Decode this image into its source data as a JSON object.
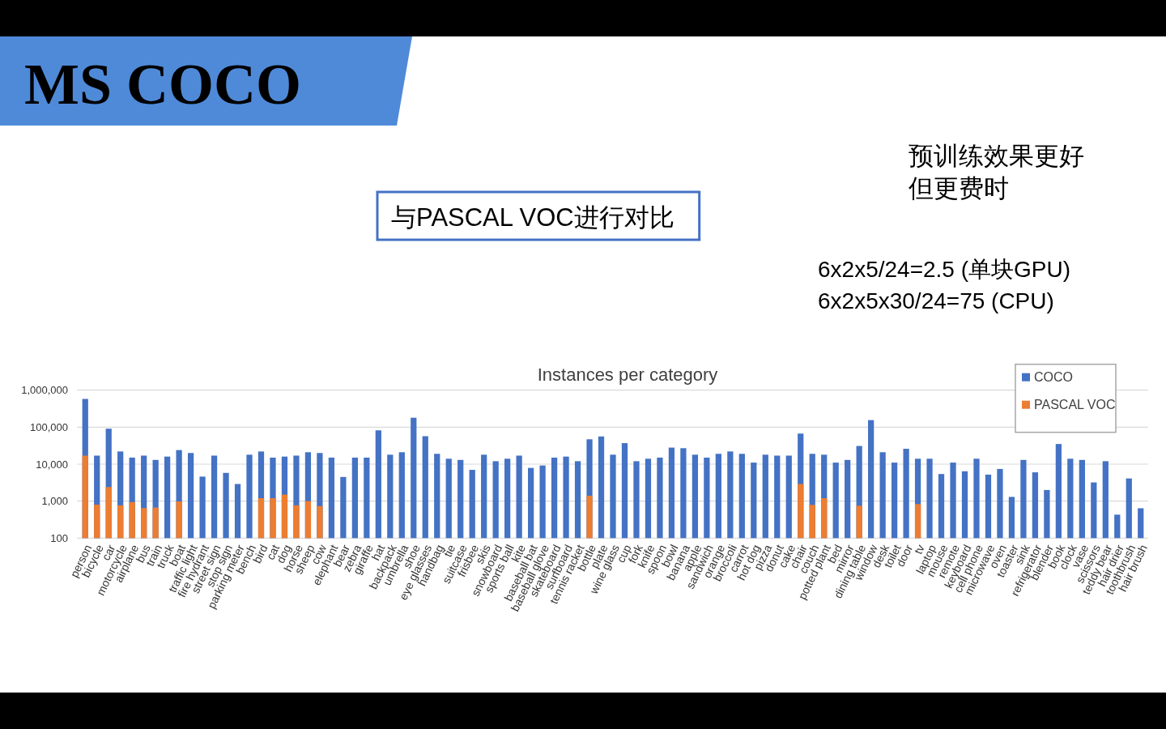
{
  "chart_data": {
    "type": "bar",
    "title": "Instances per category",
    "categories": [
      "person",
      "bicycle",
      "car",
      "motorcycle",
      "airplane",
      "bus",
      "train",
      "truck",
      "boat",
      "traffic light",
      "fire hydrant",
      "street sign",
      "stop sign",
      "parking meter",
      "bench",
      "bird",
      "cat",
      "dog",
      "horse",
      "sheep",
      "cow",
      "elephant",
      "bear",
      "zebra",
      "giraffe",
      "hat",
      "backpack",
      "umbrella",
      "shoe",
      "eye glasses",
      "handbag",
      "tie",
      "suitcase",
      "frisbee",
      "skis",
      "snowboard",
      "sports ball",
      "kite",
      "baseball bat",
      "baseball glove",
      "skateboard",
      "surfboard",
      "tennis racket",
      "bottle",
      "plate",
      "wine glass",
      "cup",
      "fork",
      "knife",
      "spoon",
      "bowl",
      "banana",
      "apple",
      "sandwich",
      "orange",
      "broccoli",
      "carrot",
      "hot dog",
      "pizza",
      "donut",
      "cake",
      "chair",
      "couch",
      "potted plant",
      "bed",
      "mirror",
      "dining table",
      "window",
      "desk",
      "toilet",
      "door",
      "tv",
      "laptop",
      "mouse",
      "remote",
      "keyboard",
      "cell phone",
      "microwave",
      "oven",
      "toaster",
      "sink",
      "refrigerator",
      "blender",
      "book",
      "clock",
      "vase",
      "scissors",
      "teddy bear",
      "hair drier",
      "toothbrush",
      "hair brush"
    ],
    "series": [
      {
        "name": "COCO",
        "color": "#4472c4",
        "values": [
          580000,
          17000,
          91000,
          22000,
          15000,
          17000,
          13000,
          16000,
          24000,
          20000,
          4600,
          17000,
          5800,
          2900,
          18000,
          22000,
          15000,
          16000,
          17000,
          21000,
          20000,
          15000,
          4500,
          15000,
          15000,
          82000,
          18000,
          21000,
          180000,
          57000,
          19000,
          14000,
          13000,
          7000,
          18000,
          12000,
          14000,
          17000,
          7900,
          9200,
          15000,
          16000,
          12000,
          47000,
          56000,
          18000,
          37000,
          12000,
          14000,
          15000,
          28000,
          27000,
          18000,
          15000,
          19000,
          22000,
          19000,
          11000,
          18000,
          17000,
          17000,
          67000,
          19000,
          18000,
          11000,
          13000,
          31000,
          155000,
          21000,
          11000,
          26000,
          14000,
          14000,
          5400,
          11000,
          6400,
          14000,
          5200,
          7400,
          1300,
          13000,
          6000,
          2000,
          35000,
          14000,
          13000,
          3200,
          12000,
          430,
          4100,
          640
        ]
      },
      {
        "name": "PASCAL VOC",
        "color": "#ed7d31",
        "values": [
          17000,
          800,
          2400,
          770,
          940,
          650,
          670,
          null,
          980,
          null,
          null,
          null,
          null,
          null,
          null,
          1200,
          1200,
          1500,
          770,
          1000,
          730,
          null,
          null,
          null,
          null,
          null,
          null,
          null,
          null,
          null,
          null,
          null,
          null,
          null,
          null,
          null,
          null,
          null,
          null,
          null,
          null,
          null,
          null,
          1400,
          null,
          null,
          null,
          null,
          null,
          null,
          null,
          null,
          null,
          null,
          null,
          null,
          null,
          null,
          null,
          null,
          null,
          2900,
          790,
          1200,
          null,
          null,
          750,
          null,
          null,
          null,
          null,
          830,
          null,
          null,
          null,
          null,
          null,
          null,
          null,
          null,
          null,
          null,
          null,
          null,
          null,
          null,
          null,
          null,
          null,
          null,
          null
        ]
      }
    ],
    "log": true,
    "ylim": [
      100,
      1000000
    ],
    "yticks": [
      100,
      {
        "value": 1000,
        "label": "1,000"
      },
      {
        "value": 10000,
        "label": "10,000"
      },
      {
        "value": 100000,
        "label": "100,000"
      },
      {
        "value": 1000000,
        "label": "1,000,000"
      }
    ],
    "grid": "y",
    "legend": "top right",
    "annotations": [
      "MS COCO",
      "与PASCAL VOC进行对比",
      "预训练效果更好",
      "但更费时",
      "6x2x5/24=2.5 (单块GPU)",
      "6x2x5x30/24=75 (CPU)"
    ]
  }
}
